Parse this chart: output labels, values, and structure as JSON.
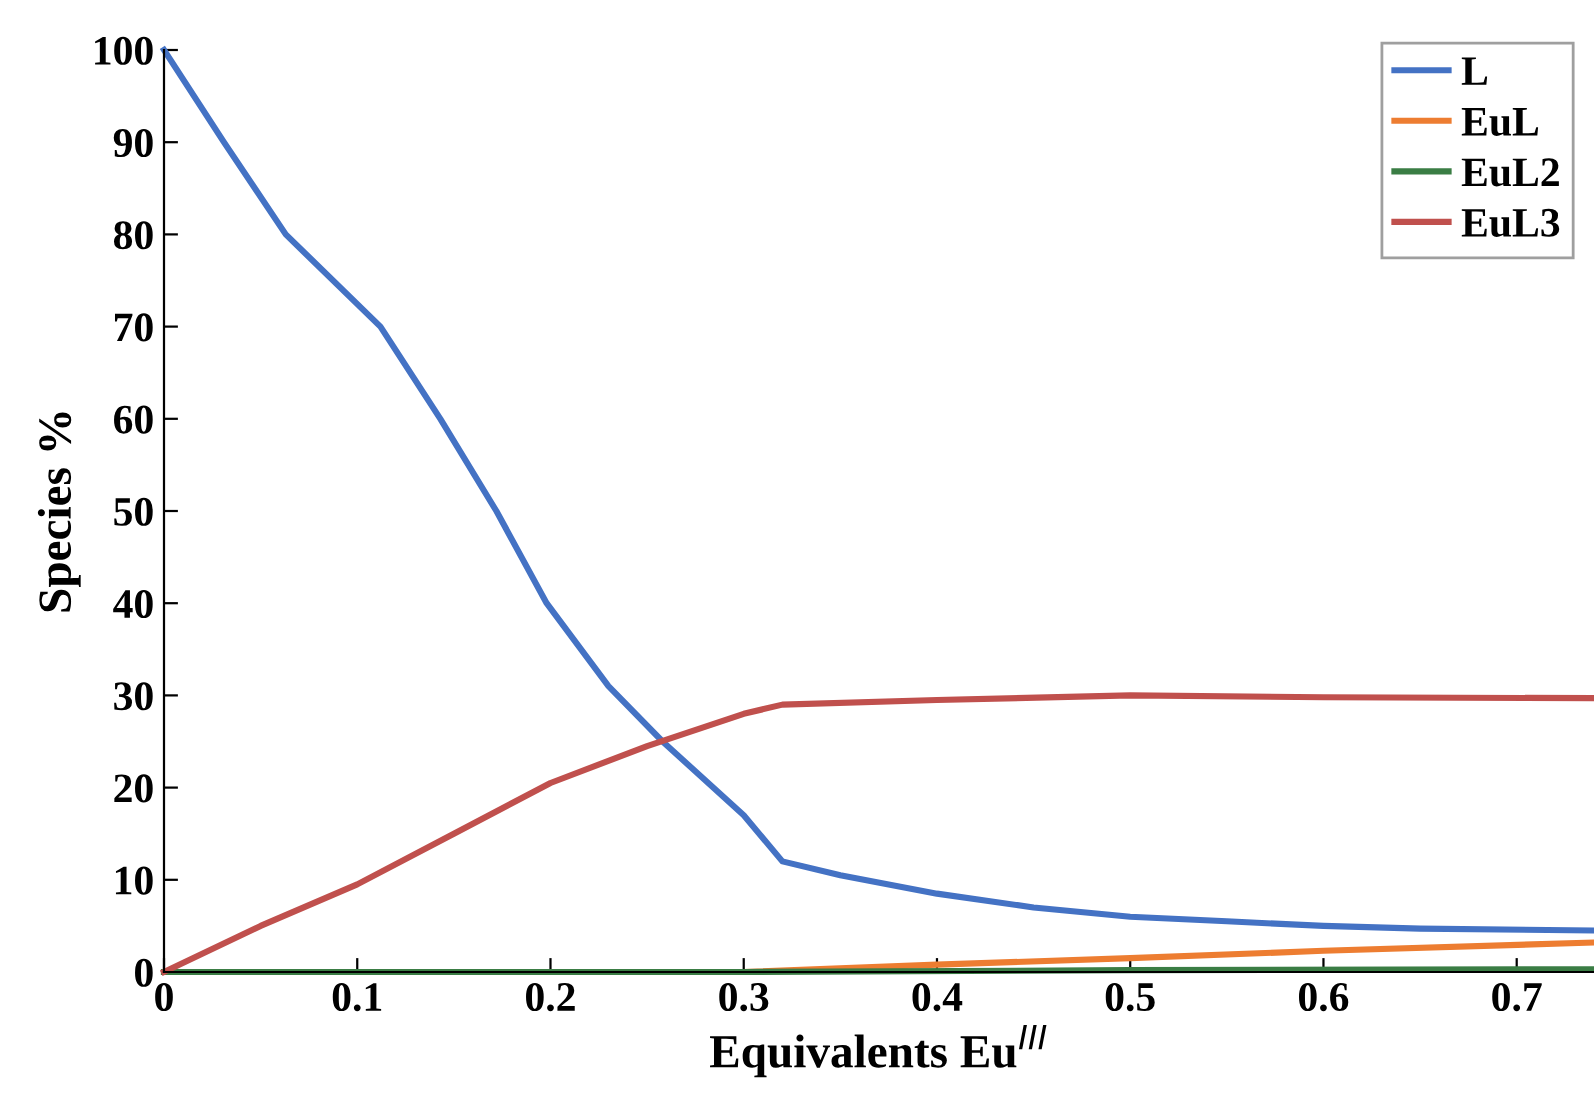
{
  "chart_data": {
    "type": "line",
    "xlabel": "Equivalents Eu$^{III}$",
    "ylabel": "Species %",
    "xlim": [
      0,
      0.74
    ],
    "ylim": [
      0,
      100
    ],
    "xticks": [
      0,
      0.1,
      0.2,
      0.3,
      0.4,
      0.5,
      0.6,
      0.7
    ],
    "yticks": [
      0,
      10,
      20,
      30,
      40,
      50,
      60,
      70,
      80,
      90,
      100
    ],
    "grid": false,
    "legend": "top right",
    "marker": "none",
    "line_style": "solid",
    "series": [
      {
        "name": "L",
        "color": "#4472c4",
        "x": [
          0,
          0.031,
          0.063,
          0.112,
          0.143,
          0.172,
          0.198,
          0.23,
          0.258,
          0.3,
          0.32,
          0.35,
          0.4,
          0.45,
          0.5,
          0.55,
          0.6,
          0.65,
          0.74
        ],
        "values": [
          100,
          90,
          80,
          70,
          60,
          50,
          40,
          31,
          25,
          17,
          12,
          10.5,
          8.5,
          7,
          6,
          5.5,
          5,
          4.7,
          4.5
        ]
      },
      {
        "name": "EuL",
        "color": "#ed7d31",
        "x": [
          0,
          0.3,
          0.4,
          0.5,
          0.6,
          0.74
        ],
        "values": [
          0,
          0,
          0.8,
          1.5,
          2.3,
          3.2
        ]
      },
      {
        "name": "EuL2",
        "color": "#3a7d44",
        "x": [
          0,
          0.3,
          0.5,
          0.74
        ],
        "values": [
          0,
          0,
          0.2,
          0.3
        ]
      },
      {
        "name": "EuL3",
        "color": "#c0504d",
        "x": [
          0,
          0.05,
          0.1,
          0.15,
          0.2,
          0.25,
          0.3,
          0.32,
          0.4,
          0.5,
          0.6,
          0.74
        ],
        "values": [
          0,
          5,
          9.5,
          15,
          20.5,
          24.5,
          28,
          29,
          29.5,
          30,
          29.8,
          29.7
        ]
      }
    ]
  }
}
